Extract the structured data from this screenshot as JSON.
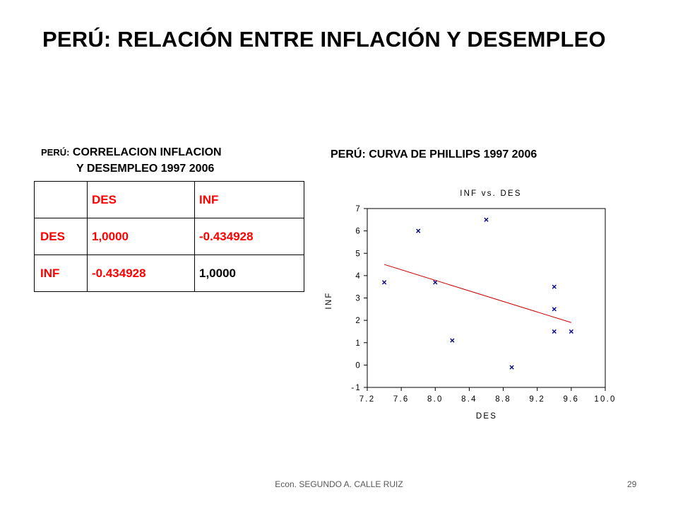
{
  "title": "PERÚ: RELACIÓN ENTRE INFLACIÓN Y DESEMPLEO",
  "correlation": {
    "title_prefix": "PERÚ:",
    "title_rest": "CORRELACION INFLACION",
    "title_line2": "Y DESEMPLEO 1997 2006",
    "headers": [
      "DES",
      "INF"
    ],
    "rows": [
      {
        "label": "DES",
        "values": [
          "1,0000",
          "-0.434928"
        ]
      },
      {
        "label": "INF",
        "values": [
          "-0.434928",
          "1,0000"
        ]
      }
    ]
  },
  "phillips_title": "PERÚ: CURVA DE PHILLIPS 1997 2006",
  "chart_data": {
    "type": "scatter",
    "title": "INF vs. DES",
    "xlabel": "DES",
    "ylabel": "INF",
    "xlim": [
      7.2,
      10.0
    ],
    "ylim": [
      -1,
      7
    ],
    "xticks": [
      "7.2",
      "7.6",
      "8.0",
      "8.4",
      "8.8",
      "9.2",
      "9.6",
      "10.0"
    ],
    "yticks": [
      "-1",
      "0",
      "1",
      "2",
      "3",
      "4",
      "5",
      "6",
      "7"
    ],
    "points": [
      {
        "x": 7.4,
        "y": 3.7
      },
      {
        "x": 7.8,
        "y": 6.0
      },
      {
        "x": 8.0,
        "y": 3.7
      },
      {
        "x": 8.2,
        "y": 1.1
      },
      {
        "x": 8.6,
        "y": 6.5
      },
      {
        "x": 8.9,
        "y": -0.1
      },
      {
        "x": 9.4,
        "y": 3.5
      },
      {
        "x": 9.4,
        "y": 2.5
      },
      {
        "x": 9.4,
        "y": 1.5
      },
      {
        "x": 9.6,
        "y": 1.5
      }
    ],
    "fit_line": {
      "x": [
        7.4,
        9.6
      ],
      "y": [
        4.5,
        1.9
      ]
    },
    "marker_color": "#00008b",
    "line_color": "#cc0000"
  },
  "footer": "Econ. SEGUNDO A. CALLE RUIZ",
  "page_number": "29"
}
